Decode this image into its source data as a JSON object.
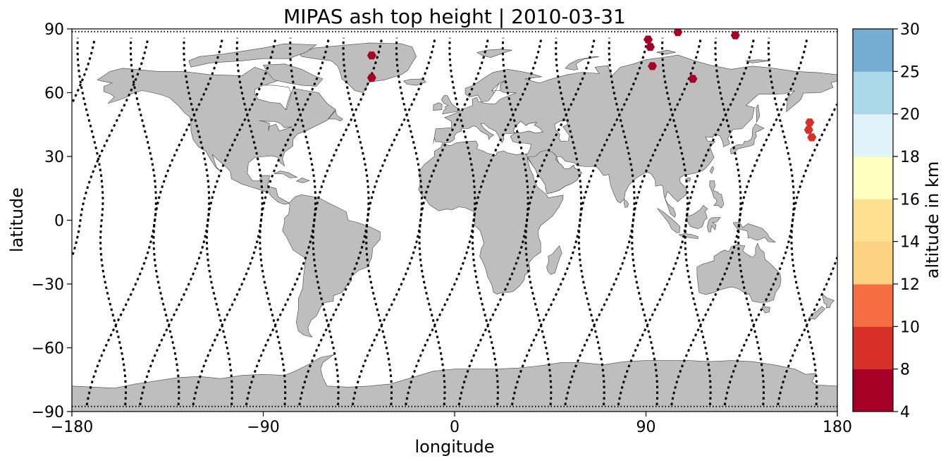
{
  "chart_data": {
    "type": "scatter",
    "title": "MIPAS ash top height | 2010-03-31",
    "xlabel": "longitude",
    "ylabel": "latitude",
    "xlim": [
      -180,
      180
    ],
    "ylim": [
      -90,
      90
    ],
    "xticks": [
      "−180",
      "−90",
      "0",
      "90",
      "180"
    ],
    "yticks": [
      "90",
      "60",
      "30",
      "0",
      "−30",
      "−60",
      "−90"
    ],
    "xtick_values": [
      -180,
      -90,
      0,
      90,
      180
    ],
    "ytick_values": [
      90,
      60,
      30,
      0,
      -30,
      -60,
      -90
    ],
    "grid": false,
    "basemap": "world coastlines, land filled gray",
    "colorbar": {
      "label": "altitude in km",
      "boundaries": [
        4,
        8,
        10,
        12,
        14,
        16,
        18,
        20,
        25,
        30
      ],
      "tick_labels": [
        "4",
        "8",
        "10",
        "12",
        "14",
        "16",
        "18",
        "20",
        "25",
        "30"
      ],
      "colors": [
        "#a50026",
        "#d73027",
        "#f46d43",
        "#fdae61",
        "#fee090",
        "#ffffbf",
        "#e0f3f8",
        "#abd9e9",
        "#74add1",
        "#4575b4",
        "#313695"
      ]
    },
    "ash_points": [
      {
        "lon": -39,
        "lat": 77.5,
        "height_km": 6
      },
      {
        "lon": -39,
        "lat": 67,
        "height_km": 6
      },
      {
        "lon": 92,
        "lat": 81.5,
        "height_km": 6
      },
      {
        "lon": 91,
        "lat": 85,
        "height_km": 6
      },
      {
        "lon": 105,
        "lat": 88.5,
        "height_km": 6
      },
      {
        "lon": 132,
        "lat": 87,
        "height_km": 6
      },
      {
        "lon": 93,
        "lat": 72.5,
        "height_km": 6
      },
      {
        "lon": 112,
        "lat": 66.5,
        "height_km": 6
      },
      {
        "lon": 167,
        "lat": 46,
        "height_km": 9
      },
      {
        "lon": 166.5,
        "lat": 42.5,
        "height_km": 9
      },
      {
        "lon": 168,
        "lat": 39,
        "height_km": 9
      }
    ],
    "orbit_tracks": {
      "count": 14,
      "equator_crossing_lon": [
        -166,
        -141,
        -116,
        -91,
        -66,
        -41,
        -16,
        9,
        34,
        59,
        84,
        109,
        134,
        159
      ],
      "description": "MIPAS measurement locations along descending sun-synchronous orbit tracks"
    }
  }
}
